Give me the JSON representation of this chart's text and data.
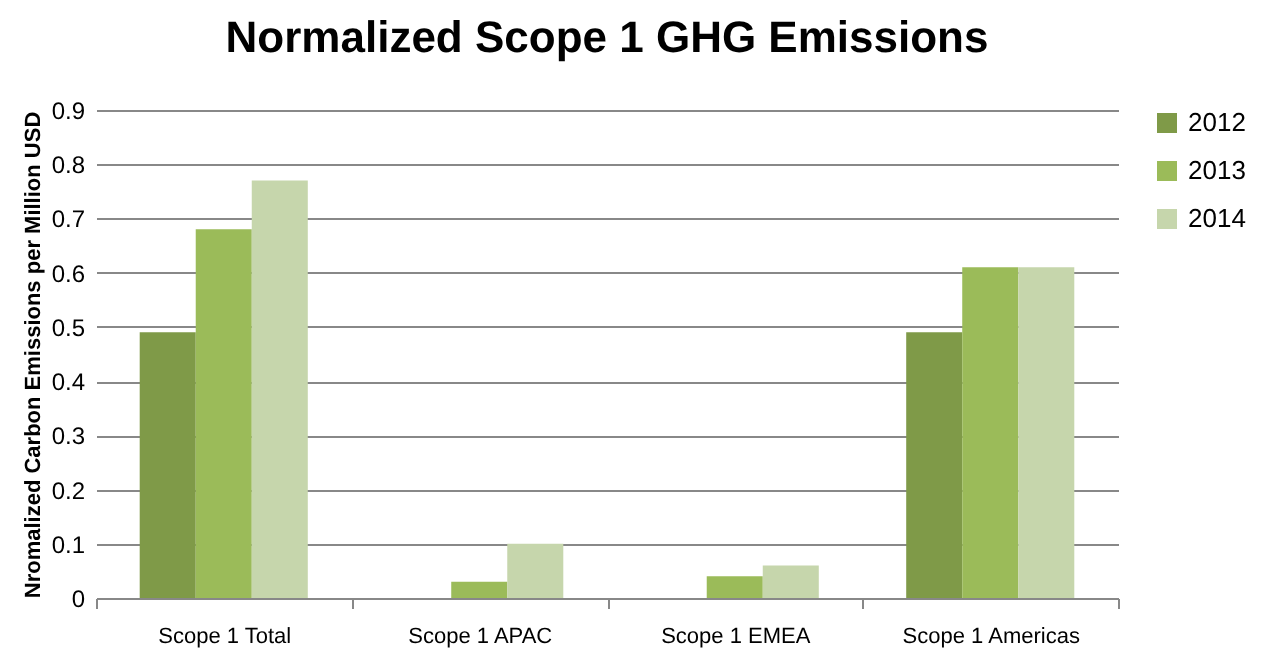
{
  "chart_data": {
    "type": "bar",
    "title": "Normalized Scope 1 GHG Emissions",
    "ylabel": "Nromalized Carbon Emissions per Million USD",
    "categories": [
      "Scope 1 Total",
      "Scope 1 APAC",
      "Scope 1 EMEA",
      "Scope 1 Americas"
    ],
    "series": [
      {
        "name": "2012",
        "color": "#7f9a48",
        "values": [
          0.49,
          0,
          0,
          0.49
        ]
      },
      {
        "name": "2013",
        "color": "#9bbb59",
        "values": [
          0.68,
          0.03,
          0.04,
          0.61
        ]
      },
      {
        "name": "2014",
        "color": "#c6d6ac",
        "values": [
          0.77,
          0.1,
          0.06,
          0.61
        ]
      }
    ],
    "ylim": [
      0,
      0.9
    ],
    "yticks": [
      0,
      0.1,
      0.2,
      0.3,
      0.4,
      0.5,
      0.6,
      0.7,
      0.8,
      0.9
    ],
    "grid": "y",
    "legend": "right"
  }
}
